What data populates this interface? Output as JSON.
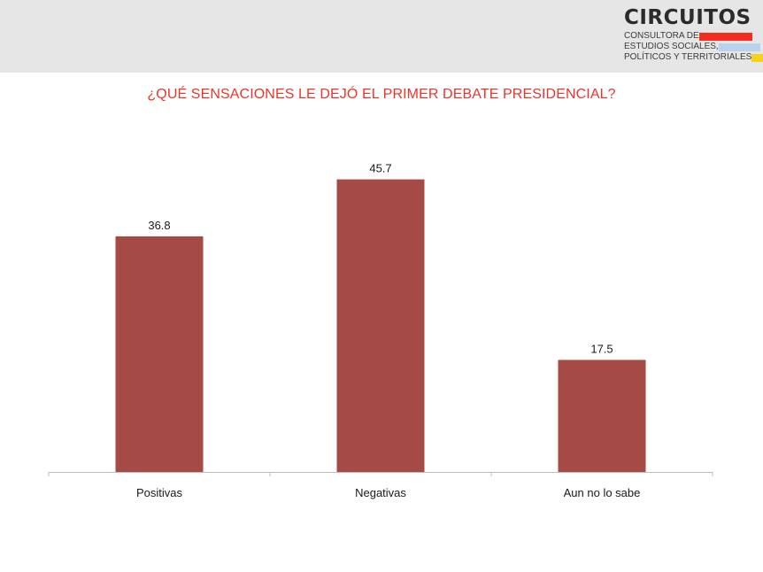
{
  "brand": {
    "name": "CIRCUITOS",
    "lines": [
      {
        "text": "CONSULTORA DE",
        "color": "#f22e1f"
      },
      {
        "text": "ESTUDIOS SOCIALES,",
        "color": "#b8d3ee"
      },
      {
        "text": "POLÍTICOS Y TERRITORIALES",
        "color": "#f7d21b"
      }
    ]
  },
  "chart_data": {
    "type": "bar",
    "title": "¿QUÉ SENSACIONES LE DEJÓ EL PRIMER DEBATE PRESIDENCIAL?",
    "categories": [
      "Positivas",
      "Negativas",
      "Aun no lo sabe"
    ],
    "values": [
      36.8,
      45.7,
      17.5
    ],
    "value_labels": [
      "36.8",
      "45.7",
      "17.5"
    ],
    "ylim": [
      0,
      50
    ],
    "grid": false,
    "legend": "none",
    "bar_color": "#a54a45",
    "title_color": "#e8362d"
  }
}
